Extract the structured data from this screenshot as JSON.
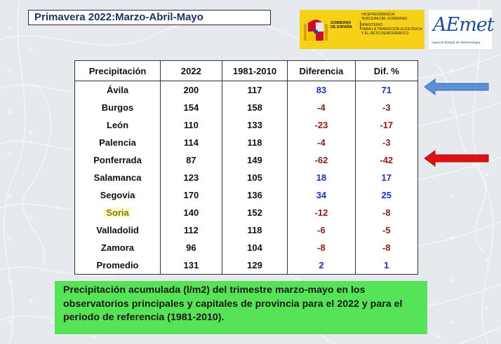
{
  "title": "Primavera 2022:Marzo-Abril-Mayo",
  "gov_logo": {
    "gobierno_lines": [
      "GOBIERNO",
      "DE ESPAÑA"
    ],
    "ministry_lines": [
      "VICEPRESIDENCIA",
      "TERCERA DEL GOBIERNO",
      "",
      "MINISTERIO",
      "PARA LA TRANSICIÓN ECOLÓGICA",
      "Y EL RETO DEMOGRÁFICO"
    ],
    "color": "#f7d117"
  },
  "aemet_logo": {
    "wordmark": "AEmet",
    "subtitle": "Agencia Estatal de Meteorología",
    "color": "#1f4e96"
  },
  "table": {
    "headers": [
      "Precipitación",
      "2022",
      "1981-2010",
      "Diferencia",
      "Dif. %"
    ],
    "rows": [
      {
        "name": "Ávila",
        "y2022": "200",
        "ref": "117",
        "diff": "83",
        "diffpct": "71"
      },
      {
        "name": "Burgos",
        "y2022": "154",
        "ref": "158",
        "diff": "-4",
        "diffpct": "-3"
      },
      {
        "name": "León",
        "y2022": "110",
        "ref": "133",
        "diff": "-23",
        "diffpct": "-17"
      },
      {
        "name": "Palencia",
        "y2022": "114",
        "ref": "118",
        "diff": "-4",
        "diffpct": "-3"
      },
      {
        "name": "Ponferrada",
        "y2022": "87",
        "ref": "149",
        "diff": "-62",
        "diffpct": "-42"
      },
      {
        "name": "Salamanca",
        "y2022": "123",
        "ref": "105",
        "diff": "18",
        "diffpct": "17"
      },
      {
        "name": "Segovia",
        "y2022": "170",
        "ref": "136",
        "diff": "34",
        "diffpct": "25"
      },
      {
        "name": "Soria",
        "y2022": "140",
        "ref": "152",
        "diff": "-12",
        "diffpct": "-8"
      },
      {
        "name": "Valladolid",
        "y2022": "112",
        "ref": "118",
        "diff": "-6",
        "diffpct": "-5"
      },
      {
        "name": "Zamora",
        "y2022": "96",
        "ref": "104",
        "diff": "-8",
        "diffpct": "-8"
      },
      {
        "name": "Promedio",
        "y2022": "131",
        "ref": "129",
        "diff": "2",
        "diffpct": "1"
      }
    ],
    "highlighted_row": "Soria",
    "positive_color": "#1f2fbf",
    "negative_color": "#8b1a1a"
  },
  "arrows": [
    {
      "row": "Ávila",
      "color": "#5b8fd6",
      "direction": "left"
    },
    {
      "row": "Ponferrada",
      "color": "#e01010",
      "direction": "left"
    }
  ],
  "caption_lines": [
    "Precipitación acumulada (l/m2) del trimestre marzo-mayo en los",
    "observatorios principales y capitales de provincia para el 2022 y para el",
    "periodo de referencia (1981-2010)."
  ],
  "caption_color": "#57e357"
}
